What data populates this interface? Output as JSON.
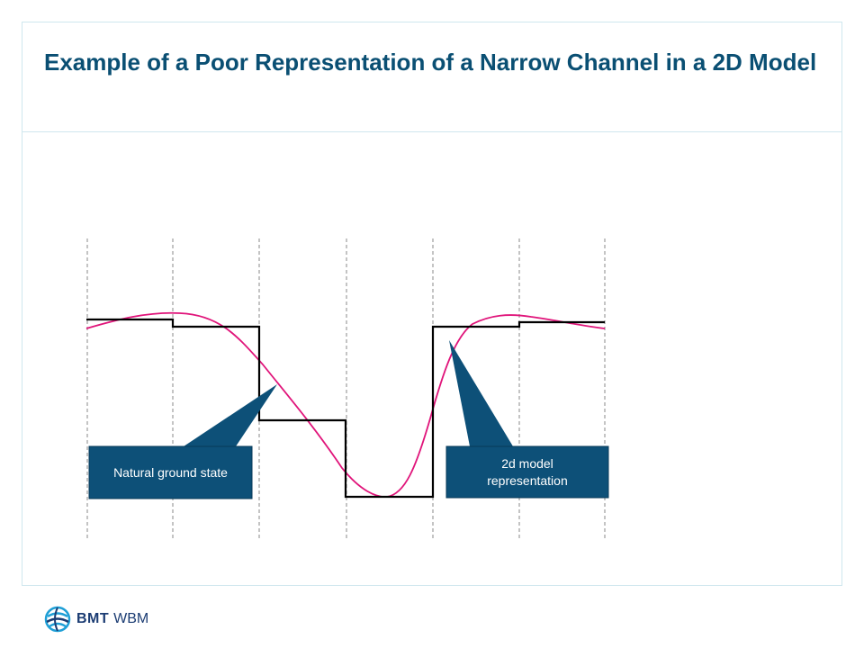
{
  "slide": {
    "title": "Example of a Poor Representation of a Narrow Channel in a 2D Model"
  },
  "diagram": {
    "callouts": {
      "natural": "Natural ground state",
      "model_line1": "2d model",
      "model_line2": "representation"
    },
    "colors": {
      "stepped_profile": "#000000",
      "natural_profile": "#e0147a",
      "callout_fill": "#0d5078",
      "grid_lines": "#888888"
    }
  },
  "footer": {
    "logo_brand": "BMT",
    "logo_sub": "WBM",
    "logo_icon": "globe-icon"
  }
}
